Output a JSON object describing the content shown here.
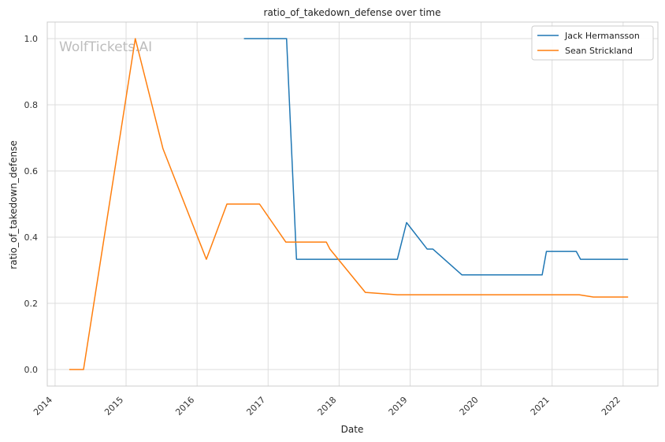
{
  "watermark": "WolfTickets.AI",
  "chart_data": {
    "type": "line",
    "title": "ratio_of_takedown_defense over time",
    "xlabel": "Date",
    "ylabel": "ratio_of_takedown_defense",
    "xlim": [
      2013.89,
      2022.49
    ],
    "ylim": [
      -0.05,
      1.05
    ],
    "x_ticks": [
      2014,
      2015,
      2016,
      2017,
      2018,
      2019,
      2020,
      2021,
      2022
    ],
    "x_tick_labels": [
      "2014",
      "2015",
      "2016",
      "2017",
      "2018",
      "2019",
      "2020",
      "2021",
      "2022"
    ],
    "y_ticks": [
      0.0,
      0.2,
      0.4,
      0.6,
      0.8,
      1.0
    ],
    "y_tick_labels": [
      "0.0",
      "0.2",
      "0.4",
      "0.6",
      "0.8",
      "1.0"
    ],
    "grid": true,
    "legend_position": "top-right",
    "series": [
      {
        "name": "Jack Hermansson",
        "color": "#1f77b4",
        "points": [
          [
            2016.66,
            1.0
          ],
          [
            2017.26,
            1.0
          ],
          [
            2017.4,
            0.333
          ],
          [
            2018.82,
            0.333
          ],
          [
            2018.95,
            0.444
          ],
          [
            2019.24,
            0.364
          ],
          [
            2019.32,
            0.364
          ],
          [
            2019.73,
            0.286
          ],
          [
            2020.86,
            0.286
          ],
          [
            2020.92,
            0.357
          ],
          [
            2021.34,
            0.357
          ],
          [
            2021.4,
            0.333
          ],
          [
            2022.07,
            0.333
          ]
        ]
      },
      {
        "name": "Sean Strickland",
        "color": "#ff7f0e",
        "points": [
          [
            2014.2,
            0.0
          ],
          [
            2014.4,
            0.0
          ],
          [
            2015.13,
            1.0
          ],
          [
            2015.52,
            0.667
          ],
          [
            2016.13,
            0.333
          ],
          [
            2016.42,
            0.5
          ],
          [
            2016.88,
            0.5
          ],
          [
            2017.25,
            0.385
          ],
          [
            2017.82,
            0.385
          ],
          [
            2017.87,
            0.364
          ],
          [
            2018.37,
            0.233
          ],
          [
            2018.82,
            0.226
          ],
          [
            2021.38,
            0.226
          ],
          [
            2021.58,
            0.219
          ],
          [
            2022.07,
            0.219
          ]
        ]
      }
    ]
  }
}
